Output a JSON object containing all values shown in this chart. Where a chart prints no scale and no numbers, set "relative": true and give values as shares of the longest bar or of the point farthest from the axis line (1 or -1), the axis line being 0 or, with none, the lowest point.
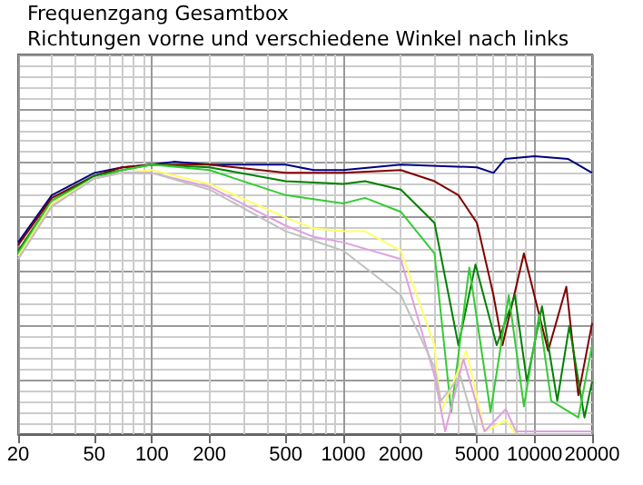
{
  "chart_data": {
    "type": "line",
    "title": "Frequenzgang Gesamtbox",
    "subtitle": "Richtungen vorne und verschiedene Winkel nach links",
    "relative": true,
    "log": "x",
    "grid": true,
    "marker": "none",
    "line_style": "solid",
    "xlim": [
      20,
      20000
    ],
    "xticks": [
      20,
      50,
      100,
      200,
      500,
      1000,
      2000,
      5000,
      10000,
      20000
    ],
    "series": [
      {
        "color": "#000080",
        "x": [
          20,
          30,
          50,
          70,
          100,
          130,
          200,
          500,
          700,
          1000,
          2000,
          5000,
          6100,
          7000,
          10000,
          15000,
          20000
        ],
        "values": [
          0.69,
          0.86,
          0.94,
          0.96,
          0.97,
          0.98,
          0.97,
          0.97,
          0.95,
          0.95,
          0.97,
          0.96,
          0.94,
          0.99,
          1.0,
          0.99,
          0.94
        ]
      },
      {
        "color": "#800000",
        "x": [
          20,
          30,
          50,
          70,
          100,
          130,
          200,
          500,
          1000,
          2000,
          3000,
          4000,
          5000,
          6100,
          6800,
          8800,
          11780,
          14660,
          16940,
          20000
        ],
        "values": [
          0.68,
          0.85,
          0.93,
          0.96,
          0.97,
          0.97,
          0.97,
          0.94,
          0.94,
          0.95,
          0.91,
          0.86,
          0.76,
          0.5,
          0.32,
          0.65,
          0.3,
          0.53,
          0.14,
          0.4
        ]
      },
      {
        "color": "#008000",
        "x": [
          20,
          30,
          50,
          70,
          100,
          200,
          500,
          1000,
          1300,
          2000,
          3000,
          4000,
          4910,
          6340,
          7890,
          9120,
          10940,
          13150,
          15200,
          18240,
          20000
        ],
        "values": [
          0.66,
          0.84,
          0.93,
          0.95,
          0.97,
          0.96,
          0.91,
          0.9,
          0.91,
          0.88,
          0.76,
          0.32,
          0.61,
          0.32,
          0.5,
          0.19,
          0.46,
          0.12,
          0.39,
          0.06,
          0.19
        ]
      },
      {
        "color": "#33cc33",
        "x": [
          20,
          30,
          50,
          70,
          100,
          200,
          500,
          1000,
          1300,
          2000,
          3000,
          3670,
          4560,
          5890,
          7330,
          8800,
          10570,
          12220,
          16940,
          20000
        ],
        "values": [
          0.65,
          0.84,
          0.92,
          0.95,
          0.97,
          0.95,
          0.86,
          0.83,
          0.85,
          0.8,
          0.65,
          0.08,
          0.6,
          0.08,
          0.5,
          0.1,
          0.43,
          0.12,
          0.06,
          0.32
        ]
      },
      {
        "color": "#ffff66",
        "x": [
          20,
          30,
          50,
          70,
          100,
          200,
          500,
          700,
          1000,
          1300,
          2000,
          3000,
          3240,
          4400,
          5480,
          7070,
          8000,
          20000
        ],
        "values": [
          0.64,
          0.83,
          0.92,
          0.94,
          0.95,
          0.9,
          0.78,
          0.74,
          0.73,
          0.73,
          0.66,
          0.32,
          0.08,
          0.3,
          0.01,
          0.05,
          0,
          0
        ]
      },
      {
        "color": "#e0a0e0",
        "x": [
          20,
          30,
          50,
          70,
          100,
          200,
          500,
          700,
          1000,
          2000,
          3000,
          3410,
          4250,
          5480,
          7070,
          8000,
          20000
        ],
        "values": [
          0.63,
          0.82,
          0.92,
          0.94,
          0.94,
          0.89,
          0.75,
          0.71,
          0.69,
          0.63,
          0.21,
          0.01,
          0.27,
          0.01,
          0.09,
          0.01,
          0.01
        ]
      },
      {
        "color": "#c0c0c0",
        "x": [
          20,
          30,
          50,
          70,
          100,
          200,
          500,
          1000,
          2000,
          3000,
          3240,
          4090,
          5000,
          20000
        ],
        "values": [
          0.63,
          0.82,
          0.92,
          0.94,
          0.94,
          0.88,
          0.73,
          0.66,
          0.5,
          0.24,
          0.12,
          0.21,
          0,
          0
        ]
      }
    ]
  }
}
